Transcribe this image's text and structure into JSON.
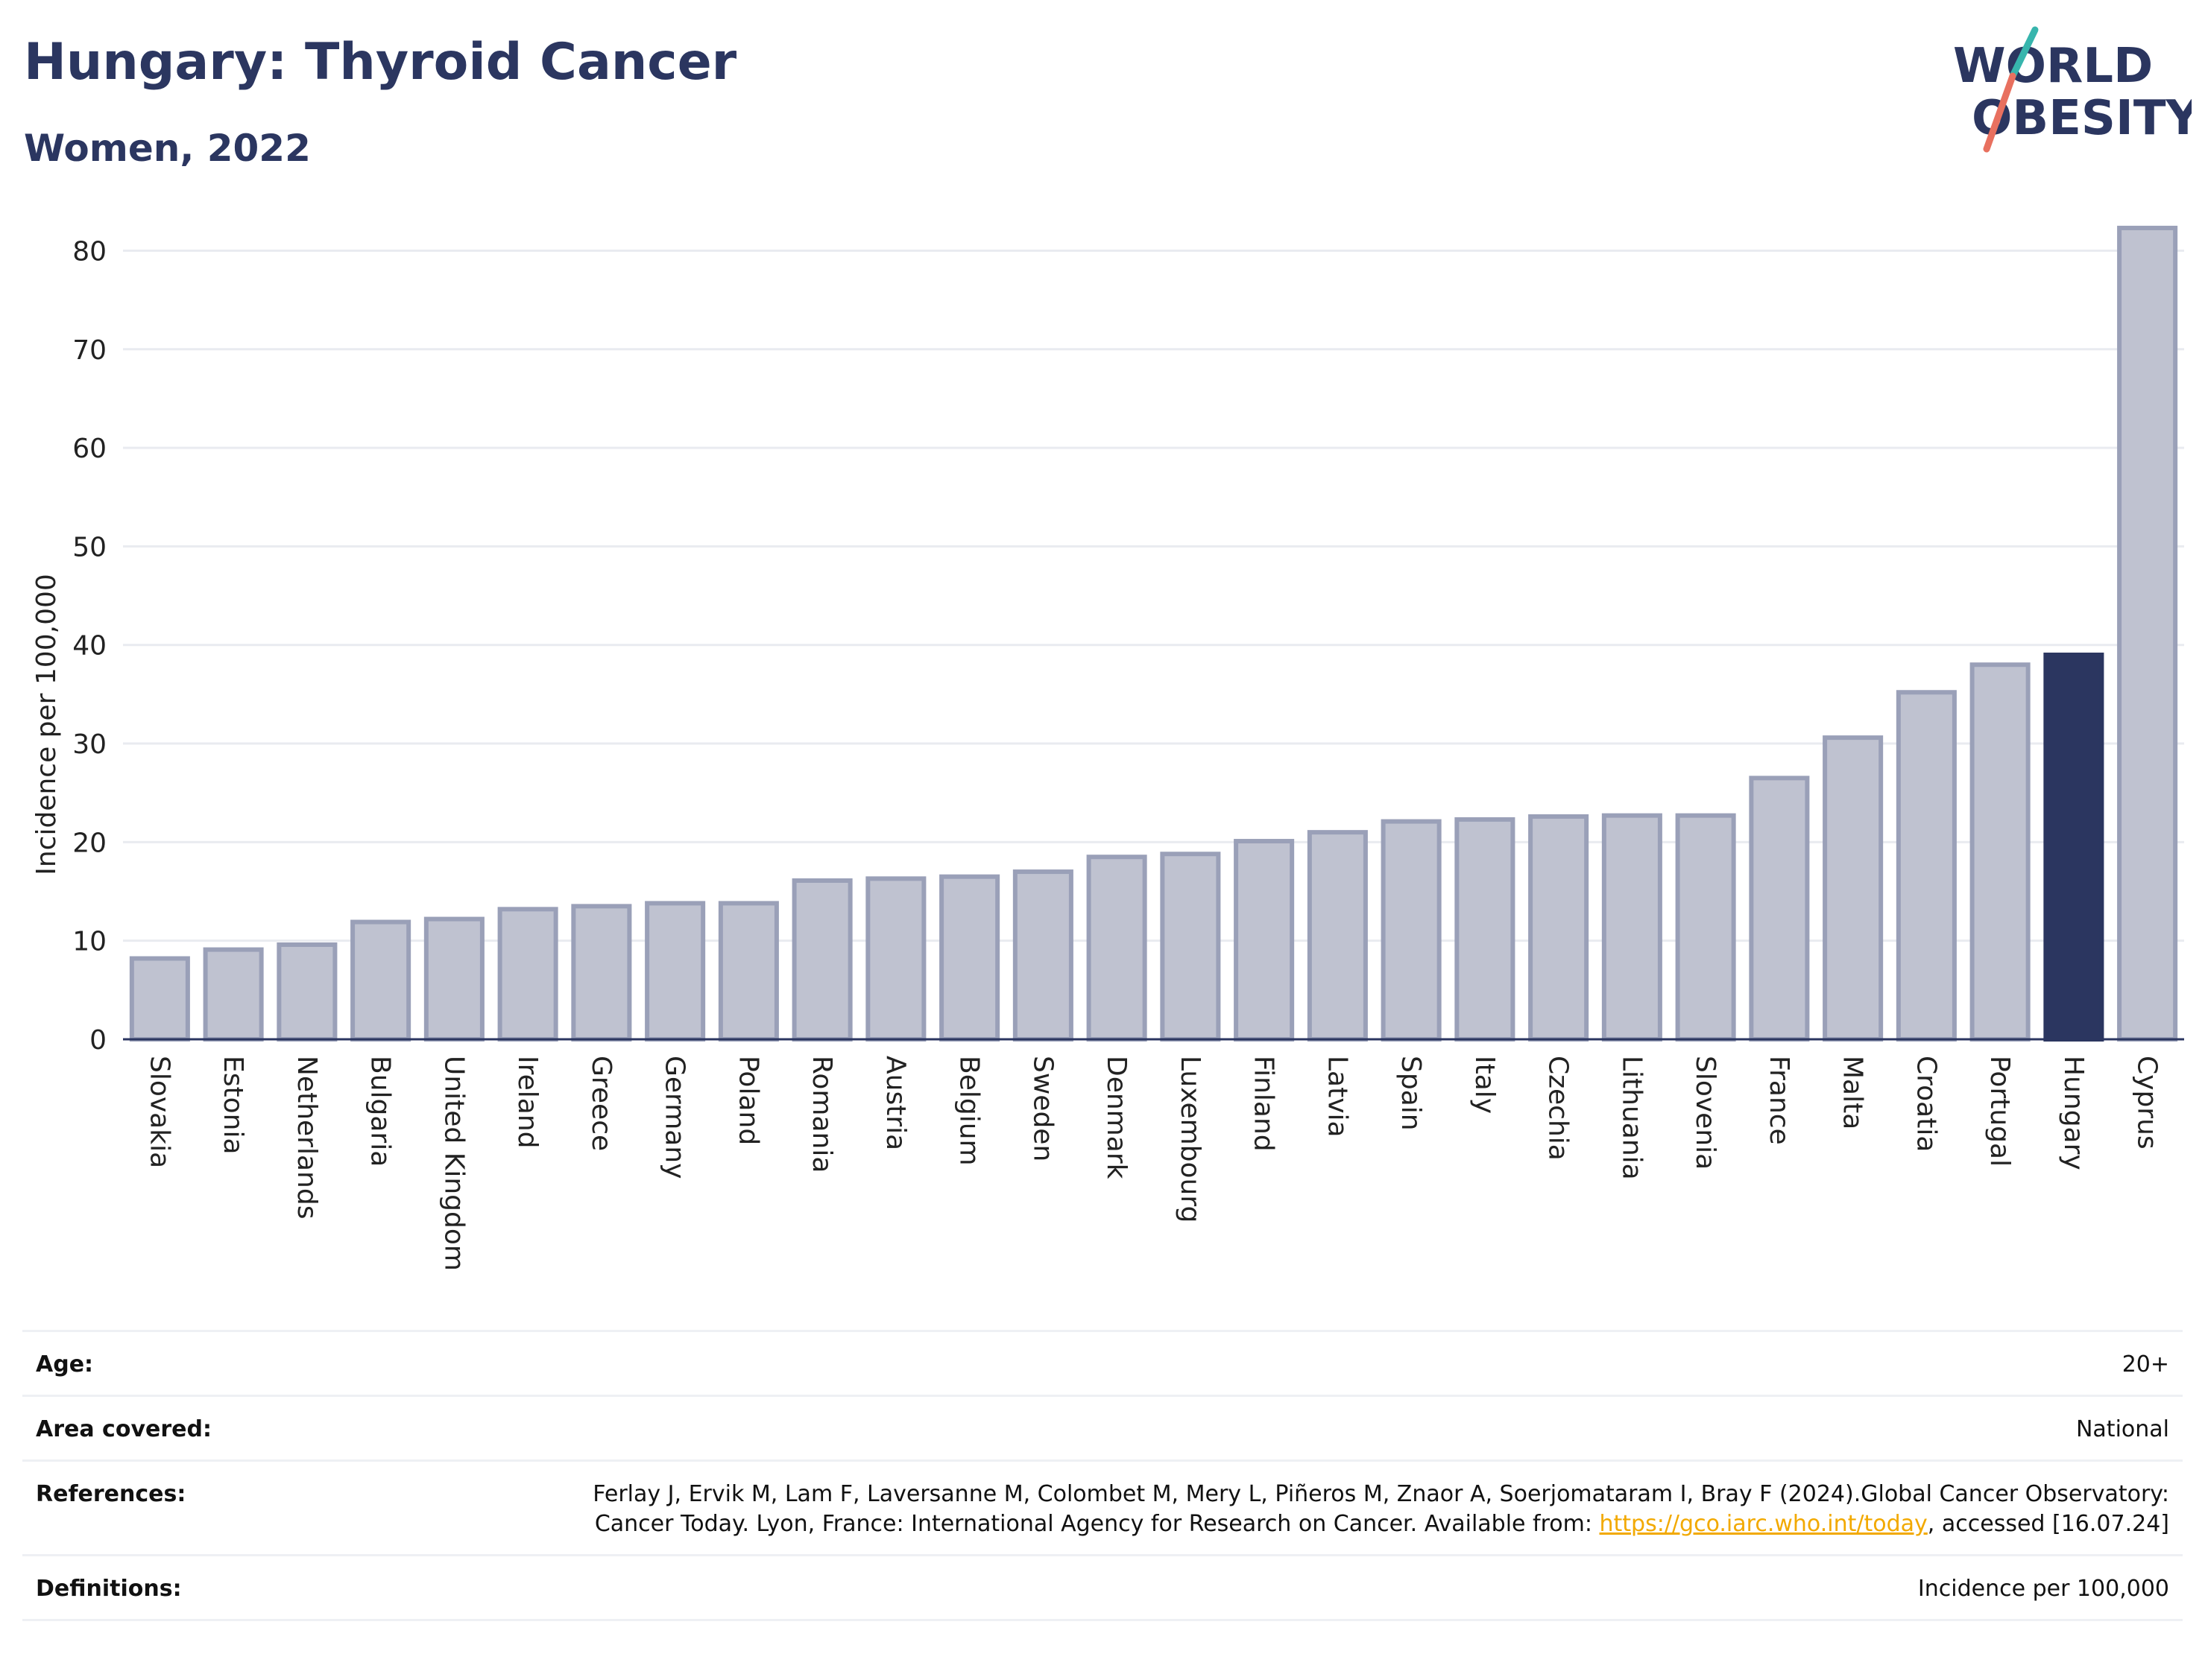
{
  "header": {
    "title": "Hungary: Thyroid Cancer",
    "subtitle": "Women, 2022"
  },
  "logo": {
    "line1": "WORLD",
    "line2": "OBESITY"
  },
  "colors": {
    "highlight": "#2b3660",
    "bar": "#bfc2d0",
    "bar_border": "#9aa0b8",
    "grid": "#e9ebf0",
    "axis": "#2b3660"
  },
  "chart_data": {
    "type": "bar",
    "ylabel": "Incidence per 100,000",
    "xlabel": "",
    "ylim": [
      0,
      82
    ],
    "yticks": [
      0,
      10,
      20,
      30,
      40,
      50,
      60,
      70,
      80
    ],
    "grid": true,
    "highlight": "Hungary",
    "categories": [
      "Slovakia",
      "Estonia",
      "Netherlands",
      "Bulgaria",
      "United Kingdom",
      "Ireland",
      "Greece",
      "Germany",
      "Poland",
      "Romania",
      "Austria",
      "Belgium",
      "Sweden",
      "Denmark",
      "Luxembourg",
      "Finland",
      "Latvia",
      "Spain",
      "Italy",
      "Czechia",
      "Lithuania",
      "Slovenia",
      "France",
      "Malta",
      "Croatia",
      "Portugal",
      "Hungary",
      "Cyprus"
    ],
    "values": [
      8.2,
      9.1,
      9.6,
      11.9,
      12.2,
      13.2,
      13.5,
      13.8,
      13.8,
      16.1,
      16.3,
      16.5,
      17.0,
      18.5,
      18.8,
      20.1,
      21.0,
      22.1,
      22.3,
      22.6,
      22.7,
      22.7,
      26.5,
      30.6,
      35.2,
      38.0,
      39.0,
      82.3
    ]
  },
  "meta": {
    "age_label": "Age:",
    "age_value": "20+",
    "area_label": "Area covered:",
    "area_value": "National",
    "references_label": "References:",
    "references_text_1": "Ferlay J, Ervik M, Lam F, Laversanne M, Colombet M, Mery L, Piñeros M, Znaor A, Soerjomataram I, Bray F (2024).Global Cancer Observatory: Cancer Today. Lyon, France: International Agency for Research on Cancer. Available from: ",
    "references_link": "https://gco.iarc.who.int/today",
    "references_text_2": ", accessed [16.07.24]",
    "definitions_label": "Definitions:",
    "definitions_value": "Incidence per 100,000"
  }
}
